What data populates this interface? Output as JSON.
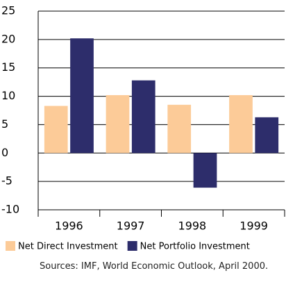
{
  "chart_data": {
    "type": "bar",
    "categories": [
      "1996",
      "1997",
      "1998",
      "1999"
    ],
    "series": [
      {
        "name": "Net Direct Investment",
        "color": "#fccb98",
        "values": [
          8.3,
          10.2,
          8.5,
          10.2
        ]
      },
      {
        "name": "Net Portfolio Investment",
        "color": "#2d2d6b",
        "values": [
          20.2,
          12.8,
          -6.1,
          6.3
        ]
      }
    ],
    "ylim": [
      -10,
      25
    ],
    "yticks": [
      -10,
      -5,
      0,
      5,
      10,
      15,
      20,
      25
    ],
    "grid": true,
    "source": "Sources: IMF, World Economic Outlook, April 2000."
  }
}
